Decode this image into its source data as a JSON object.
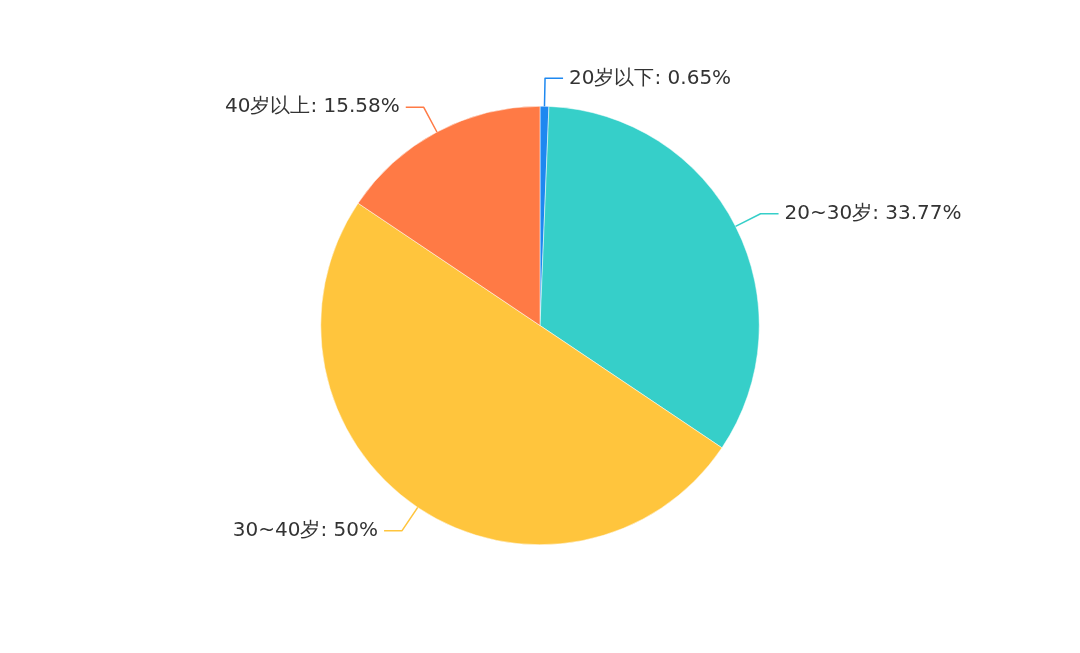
{
  "chart_data": {
    "type": "pie",
    "categories": [
      "20岁以下",
      "20~30岁",
      "30~40岁",
      "40岁以上"
    ],
    "values": [
      0.65,
      33.77,
      50,
      15.58
    ],
    "value_labels": [
      "0.65%",
      "33.77%",
      "50%",
      "15.58%"
    ],
    "colors": [
      "#1e88f0",
      "#36cfc9",
      "#ffc53d",
      "#ff7a45"
    ],
    "legend": false
  }
}
